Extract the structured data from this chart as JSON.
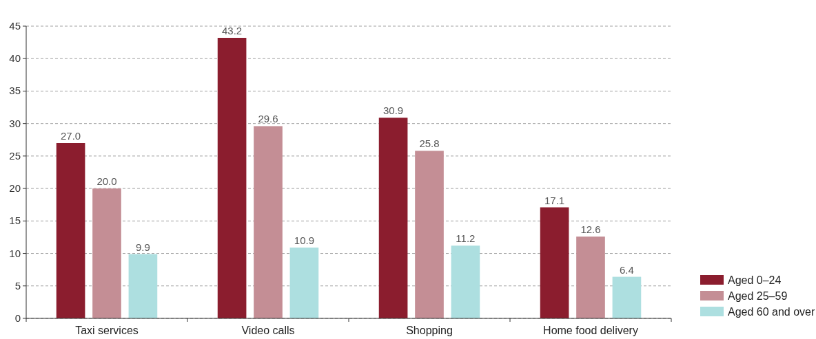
{
  "chart_data": {
    "type": "bar",
    "categories": [
      "Taxi services",
      "Video calls",
      "Shopping",
      "Home food delivery"
    ],
    "series": [
      {
        "name": "Aged 0–24",
        "color": "#8b1d2e",
        "values": [
          27.0,
          43.2,
          30.9,
          17.1
        ],
        "value_labels": [
          "27.0",
          "43.2",
          "30.9",
          "17.1"
        ]
      },
      {
        "name": "Aged 25–59",
        "color": "#c48e95",
        "values": [
          20.0,
          29.6,
          25.8,
          12.6
        ],
        "value_labels": [
          "20.0",
          "29.6",
          "25.8",
          "12.6"
        ]
      },
      {
        "name": "Aged 60 and over",
        "color": "#addfe0",
        "values": [
          9.9,
          10.9,
          11.2,
          6.4
        ],
        "value_labels": [
          "9.9",
          "10.9",
          "11.2",
          "6.4"
        ]
      }
    ],
    "ylim": [
      0,
      45
    ],
    "yticks": [
      0,
      5,
      10,
      15,
      20,
      25,
      30,
      35,
      40,
      45
    ],
    "grid": "y",
    "legend": "bottom right"
  }
}
